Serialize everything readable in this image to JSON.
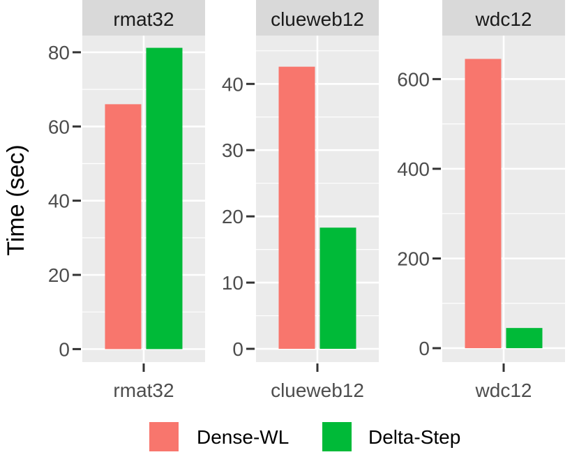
{
  "chart_data": {
    "type": "bar",
    "ylabel": "Time (sec)",
    "xlabel": "",
    "legend": {
      "position": "bottom",
      "entries": [
        {
          "name": "Dense-WL",
          "color": "#F8766D"
        },
        {
          "name": "Delta-Step",
          "color": "#00BA38"
        }
      ]
    },
    "facets": [
      {
        "title": "rmat32",
        "category": "rmat32",
        "ylim": [
          -3.5,
          84.5
        ],
        "yticks": [
          0,
          20,
          40,
          60,
          80
        ],
        "series": [
          {
            "name": "Dense-WL",
            "value": 66
          },
          {
            "name": "Delta-Step",
            "value": 81.2
          }
        ]
      },
      {
        "title": "clueweb12",
        "category": "clueweb12",
        "ylim": [
          -2,
          47.3
        ],
        "yticks": [
          0,
          10,
          20,
          30,
          40
        ],
        "series": [
          {
            "name": "Dense-WL",
            "value": 42.6
          },
          {
            "name": "Delta-Step",
            "value": 18.3
          }
        ]
      },
      {
        "title": "wdc12",
        "category": "wdc12",
        "ylim": [
          -31,
          697
        ],
        "yticks": [
          0,
          200,
          400,
          600
        ],
        "series": [
          {
            "name": "Dense-WL",
            "value": 645
          },
          {
            "name": "Delta-Step",
            "value": 45
          }
        ]
      }
    ]
  }
}
